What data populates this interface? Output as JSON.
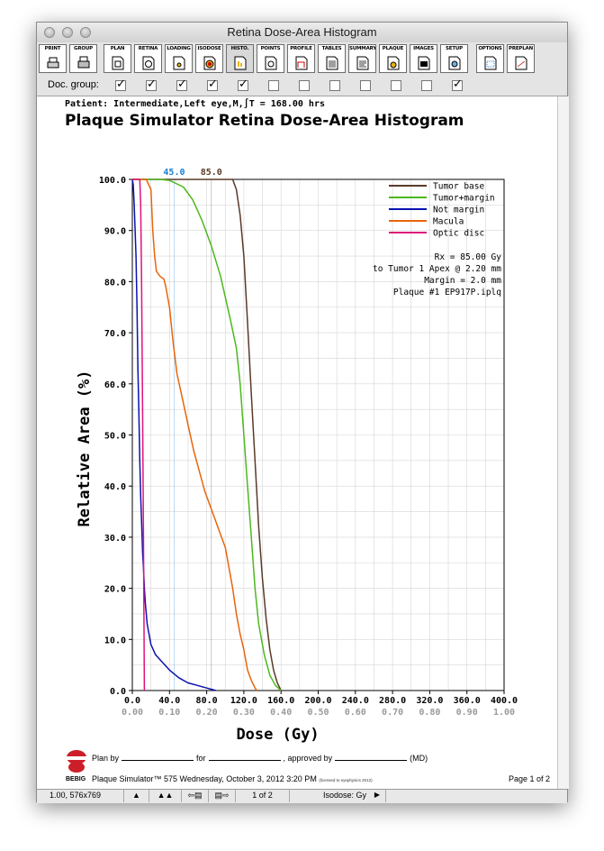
{
  "window": {
    "title": "Retina Dose-Area Histogram"
  },
  "toolbar": {
    "buttons": [
      "PRINT",
      "GROUP",
      "PLAN",
      "RETINA",
      "LOADING",
      "ISODOSE",
      "HISTO.",
      "POINTS",
      "PROFILE",
      "TABLES",
      "SUMMARY",
      "PLAQUE",
      "IMAGES",
      "SETUP",
      "OPTIONS",
      "PREPLAN"
    ]
  },
  "doc_group": {
    "label": "Doc. group:",
    "checked": [
      true,
      true,
      true,
      true,
      true,
      false,
      false,
      false,
      false,
      false,
      false,
      true
    ]
  },
  "report": {
    "patient": "Patient: Intermediate,Left eye,M,∫T = 168.00 hrs",
    "title": "Plaque Simulator Retina Dose-Area Histogram",
    "rx_lines": [
      "Rx = 85.00 Gy",
      "to Tumor 1 Apex @ 2.20 mm",
      "Margin = 2.0 mm",
      "Plaque #1 EP917P.iplq"
    ],
    "plan_by": "Plan by",
    "for": "for",
    "approved_by": ", approved by",
    "md": "(MD)",
    "brand": "BEBIG",
    "sim_line": "Plaque Simulator™ 575 Wednesday, October 3, 2012 3:20 PM",
    "licence": "(licensed to eyephysics 2012)",
    "page": "Page 1  of 2"
  },
  "status_bar": {
    "zoom": "1.00, 576x769",
    "page_of": "1   of  2",
    "isodose": "Isodose: Gy"
  },
  "chart_data": {
    "type": "line",
    "xlabel": "Dose (Gy)",
    "ylabel": "Relative Area (%)",
    "xlim": [
      0,
      400
    ],
    "ylim": [
      0,
      100
    ],
    "x_ticks": [
      "0.0",
      "40.0",
      "80.0",
      "120.0",
      "160.0",
      "200.0",
      "240.0",
      "280.0",
      "320.0",
      "360.0",
      "400.0"
    ],
    "x_ticks2": [
      "0.00",
      "0.10",
      "0.20",
      "0.30",
      "0.40",
      "0.50",
      "0.60",
      "0.70",
      "0.80",
      "0.90",
      "1.00"
    ],
    "y_ticks": [
      "0.0",
      "10.0",
      "20.0",
      "30.0",
      "40.0",
      "50.0",
      "60.0",
      "70.0",
      "80.0",
      "90.0",
      "100.0"
    ],
    "markers": [
      {
        "label": "45.0",
        "x": 45,
        "color": "#1a7fd0"
      },
      {
        "label": "85.0",
        "x": 85,
        "color": "#5a3a28"
      }
    ],
    "grid": true,
    "legend_position": "top-right",
    "series": [
      {
        "name": "Tumor base",
        "color": "#5a3a28",
        "points": [
          [
            0,
            100
          ],
          [
            100,
            100
          ],
          [
            108,
            100
          ],
          [
            112,
            98
          ],
          [
            116,
            93
          ],
          [
            120,
            85
          ],
          [
            124,
            72
          ],
          [
            128,
            58
          ],
          [
            132,
            45
          ],
          [
            136,
            32
          ],
          [
            140,
            22
          ],
          [
            144,
            14
          ],
          [
            148,
            8
          ],
          [
            152,
            4
          ],
          [
            156,
            1.5
          ],
          [
            160,
            0
          ]
        ]
      },
      {
        "name": "Tumor+margin",
        "color": "#4db81e",
        "points": [
          [
            0,
            100
          ],
          [
            30,
            100
          ],
          [
            40,
            99.8
          ],
          [
            55,
            98.5
          ],
          [
            65,
            96
          ],
          [
            75,
            92
          ],
          [
            85,
            87
          ],
          [
            95,
            81
          ],
          [
            105,
            73
          ],
          [
            112,
            67
          ],
          [
            116,
            60
          ],
          [
            120,
            50
          ],
          [
            124,
            40
          ],
          [
            128,
            30
          ],
          [
            132,
            20
          ],
          [
            136,
            13
          ],
          [
            142,
            7
          ],
          [
            148,
            3
          ],
          [
            154,
            1
          ],
          [
            160,
            0
          ]
        ]
      },
      {
        "name": "Not margin",
        "color": "#0a12b0",
        "points": [
          [
            0,
            100
          ],
          [
            1,
            99
          ],
          [
            2,
            95
          ],
          [
            3,
            90
          ],
          [
            4,
            85
          ],
          [
            5,
            75
          ],
          [
            6,
            63
          ],
          [
            7,
            55
          ],
          [
            8,
            45
          ],
          [
            9,
            38
          ],
          [
            10,
            33
          ],
          [
            11,
            27
          ],
          [
            12,
            24
          ],
          [
            13,
            20
          ],
          [
            14,
            17
          ],
          [
            16,
            13
          ],
          [
            18,
            11
          ],
          [
            20,
            9
          ],
          [
            25,
            7
          ],
          [
            30,
            6
          ],
          [
            40,
            4
          ],
          [
            50,
            2.5
          ],
          [
            60,
            1.5
          ],
          [
            70,
            1
          ],
          [
            80,
            0.5
          ],
          [
            90,
            0
          ]
        ]
      },
      {
        "name": "Macula",
        "color": "#e8650a",
        "points": [
          [
            0,
            100
          ],
          [
            15,
            100
          ],
          [
            20,
            98
          ],
          [
            22,
            90
          ],
          [
            24,
            85
          ],
          [
            26,
            82
          ],
          [
            30,
            81
          ],
          [
            34,
            80.5
          ],
          [
            36,
            79
          ],
          [
            40,
            75
          ],
          [
            44,
            68
          ],
          [
            48,
            62
          ],
          [
            54,
            57
          ],
          [
            60,
            52
          ],
          [
            66,
            47
          ],
          [
            72,
            43
          ],
          [
            78,
            39
          ],
          [
            84,
            36
          ],
          [
            88,
            34
          ],
          [
            92,
            32
          ],
          [
            96,
            30
          ],
          [
            100,
            28
          ],
          [
            104,
            24
          ],
          [
            108,
            20
          ],
          [
            112,
            15
          ],
          [
            116,
            11
          ],
          [
            120,
            8
          ],
          [
            124,
            4
          ],
          [
            128,
            2
          ],
          [
            132,
            0.5
          ],
          [
            134,
            0
          ]
        ]
      },
      {
        "name": "Optic disc",
        "color": "#e0127a",
        "points": [
          [
            0,
            100
          ],
          [
            5,
            100
          ],
          [
            8,
            100
          ],
          [
            9,
            95
          ],
          [
            10,
            80
          ],
          [
            11,
            55
          ],
          [
            12,
            30
          ],
          [
            12.5,
            15
          ],
          [
            13,
            0
          ]
        ]
      }
    ]
  }
}
